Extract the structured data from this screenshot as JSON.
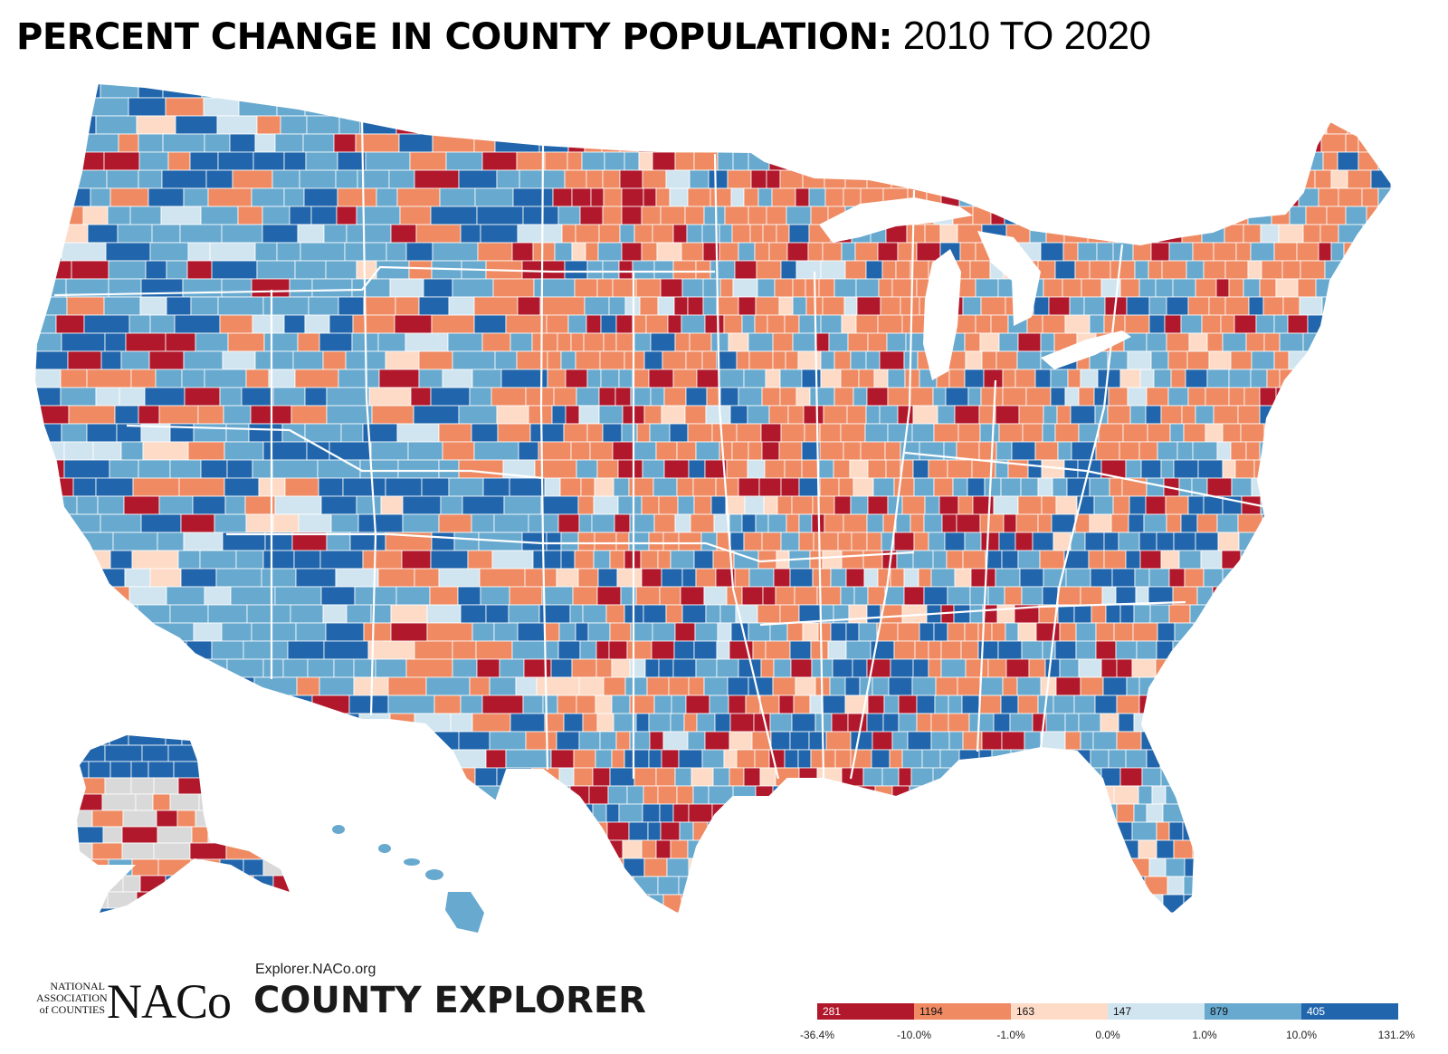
{
  "title": {
    "bold": "PERCENT CHANGE IN COUNTY POPULATION:",
    "regular": "2010 TO 2020"
  },
  "footer": {
    "org_small": [
      "NATIONAL",
      "ASSOCIATION",
      "of COUNTIES"
    ],
    "org_logo": "NACo",
    "url": "Explorer.NACo.org",
    "product": "COUNTY EXPLORER"
  },
  "legend": {
    "bins": [
      {
        "count": "281",
        "color": "#b2182b"
      },
      {
        "count": "1194",
        "color": "#ef8a62"
      },
      {
        "count": "163",
        "color": "#fddbc7"
      },
      {
        "count": "147",
        "color": "#d1e5f0"
      },
      {
        "count": "879",
        "color": "#67a9cf"
      },
      {
        "count": "405",
        "color": "#2166ac"
      }
    ],
    "ticks": [
      "-36.4%",
      "-10.0%",
      "-1.0%",
      "0.0%",
      "1.0%",
      "10.0%",
      "131.2%"
    ]
  },
  "map": {
    "no_data_color": "#d9d9d9",
    "border_color": "#ffffff"
  }
}
